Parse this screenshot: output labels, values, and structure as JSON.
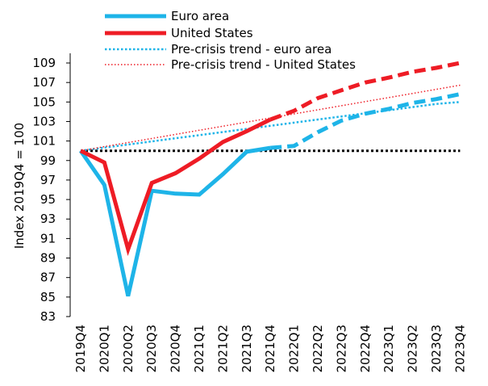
{
  "chart_data": {
    "type": "line",
    "title": "",
    "xlabel": "",
    "ylabel": "Index 2019Q4 = 100",
    "ylim": [
      83,
      110
    ],
    "yticks": [
      83,
      85,
      87,
      89,
      91,
      93,
      95,
      97,
      99,
      101,
      103,
      105,
      107,
      109
    ],
    "categories": [
      "2019Q4",
      "2020Q1",
      "2020Q2",
      "2020Q3",
      "2020Q4",
      "2021Q1",
      "2021Q2",
      "2021Q3",
      "2021Q4",
      "2022Q1",
      "2022Q2",
      "2022Q3",
      "2022Q4",
      "2023Q1",
      "2023Q2",
      "2023Q3",
      "2023Q4"
    ],
    "grid": false,
    "legend_position": "top",
    "reference_line": {
      "value": 100,
      "color": "#000000",
      "style": "dotted"
    },
    "series": [
      {
        "name": "Euro area",
        "color": "#1eb4e8",
        "style": "solid-then-dashed",
        "projection_start_index": 8,
        "values": [
          100,
          96.5,
          85.1,
          95.9,
          95.6,
          95.5,
          97.6,
          99.9,
          100.3,
          100.5,
          101.9,
          103.1,
          103.8,
          104.3,
          104.9,
          105.3,
          105.8
        ]
      },
      {
        "name": "United States",
        "color": "#ee1c25",
        "style": "solid-then-dashed",
        "projection_start_index": 8,
        "values": [
          100,
          98.8,
          89.9,
          96.7,
          97.7,
          99.2,
          100.9,
          102.0,
          103.2,
          104.1,
          105.4,
          106.2,
          107.0,
          107.5,
          108.1,
          108.5,
          109.0
        ]
      },
      {
        "name": "Pre-crisis trend - euro area",
        "color": "#1eb4e8",
        "style": "dotted",
        "values": [
          100,
          100.32,
          100.64,
          100.96,
          101.28,
          101.6,
          101.92,
          102.24,
          102.56,
          102.88,
          103.2,
          103.52,
          103.84,
          104.16,
          104.48,
          104.8,
          105.0
        ]
      },
      {
        "name": "Pre-crisis trend - United States",
        "color": "#ee1c25",
        "style": "dotted",
        "values": [
          100,
          100.42,
          100.84,
          101.26,
          101.68,
          102.1,
          102.52,
          102.94,
          103.36,
          103.78,
          104.2,
          104.62,
          105.04,
          105.46,
          105.88,
          106.3,
          106.72
        ]
      }
    ]
  }
}
